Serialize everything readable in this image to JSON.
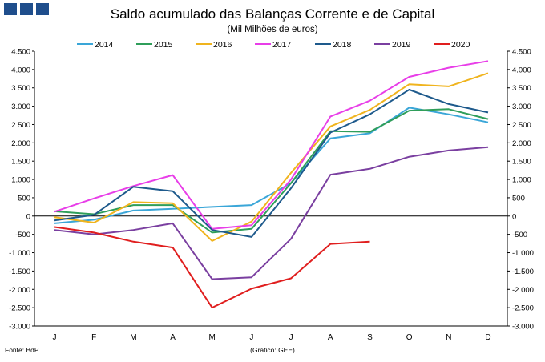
{
  "header": {
    "title": "Saldo acumulado das Balanças Corrente e de Capital",
    "subtitle": "(Mil Milhões  de euros)"
  },
  "footer": {
    "source": "Fonte: BdP",
    "credit": "(Gráfico:  GEE)"
  },
  "logo": {
    "label": "logo-squares",
    "color": "#1f4e8c"
  },
  "chart_data": {
    "type": "line",
    "categories": [
      "J",
      "F",
      "M",
      "A",
      "M",
      "J",
      "J",
      "A",
      "S",
      "O",
      "N",
      "D"
    ],
    "ylim": [
      -3000,
      4500
    ],
    "yticks": [
      -3000,
      -2500,
      -2000,
      -1500,
      -1000,
      -500,
      0,
      500,
      1000,
      1500,
      2000,
      2500,
      3000,
      3500,
      4000,
      4500
    ],
    "ytick_labels": [
      "-3.000",
      "-2.500",
      "-2.000",
      "-1.500",
      "-1.000",
      "-500",
      "0",
      "500",
      "1.000",
      "1.500",
      "2.000",
      "2.500",
      "3.000",
      "3.500",
      "4.000",
      "4.500"
    ],
    "grid": false,
    "legend_position": "top",
    "series": [
      {
        "name": "2014",
        "color": "#3aa6d8",
        "values": [
          -200,
          -100,
          150,
          200,
          250,
          300,
          900,
          2120,
          2260,
          2960,
          2780,
          2560
        ]
      },
      {
        "name": "2015",
        "color": "#2f9e5a",
        "values": [
          130,
          50,
          300,
          300,
          -450,
          -350,
          900,
          2320,
          2300,
          2880,
          2920,
          2650
        ]
      },
      {
        "name": "2016",
        "color": "#f0b41e",
        "values": [
          -30,
          -180,
          380,
          350,
          -680,
          -150,
          1180,
          2450,
          2900,
          3600,
          3540,
          3900
        ]
      },
      {
        "name": "2017",
        "color": "#e83ee8",
        "values": [
          120,
          480,
          820,
          1120,
          -350,
          -250,
          1000,
          2720,
          3150,
          3800,
          4050,
          4230
        ]
      },
      {
        "name": "2018",
        "color": "#1e5a8c",
        "values": [
          -120,
          30,
          800,
          680,
          -380,
          -570,
          760,
          2280,
          2780,
          3450,
          3060,
          2830
        ]
      },
      {
        "name": "2019",
        "color": "#7a3fa0",
        "values": [
          -380,
          -500,
          -380,
          -200,
          -1720,
          -1670,
          -620,
          1130,
          1290,
          1620,
          1790,
          1880
        ]
      },
      {
        "name": "2020",
        "color": "#e01e1e",
        "values": [
          -300,
          -450,
          -700,
          -860,
          -2500,
          -1980,
          -1700,
          -760,
          -700,
          null,
          null,
          null
        ]
      }
    ]
  }
}
